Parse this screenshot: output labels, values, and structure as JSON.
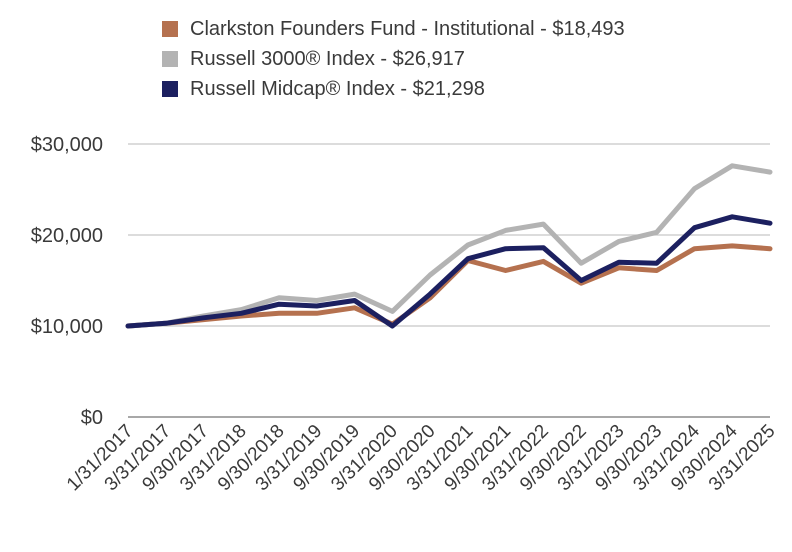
{
  "chart_data": {
    "type": "line",
    "title": "",
    "xlabel": "",
    "ylabel": "",
    "ylim": [
      0,
      30000
    ],
    "y_ticks": [
      0,
      10000,
      20000,
      30000
    ],
    "y_tick_labels": [
      "$0",
      "$10,000",
      "$20,000",
      "$30,000"
    ],
    "legend_position": "top-left",
    "grid": "horizontal",
    "categories": [
      "1/31/2017",
      "3/31/2017",
      "9/30/2017",
      "3/31/2018",
      "9/30/2018",
      "3/31/2019",
      "9/30/2019",
      "3/31/2020",
      "9/30/2020",
      "3/31/2021",
      "9/30/2021",
      "3/31/2022",
      "9/30/2022",
      "3/31/2023",
      "9/30/2023",
      "3/31/2024",
      "9/30/2024",
      "3/31/2025"
    ],
    "series": [
      {
        "name": "Clarkston Founders Fund - Institutional - $18,493",
        "color": "#b5714f",
        "values": [
          10000,
          10300,
          10700,
          11100,
          11400,
          11400,
          12000,
          10200,
          13100,
          17200,
          16100,
          17100,
          14700,
          16400,
          16100,
          18500,
          18800,
          18493
        ]
      },
      {
        "name": "Russell 3000® Index - $26,917",
        "color": "#b3b3b3",
        "values": [
          10000,
          10300,
          11100,
          11800,
          13100,
          12800,
          13500,
          11600,
          15600,
          18900,
          20500,
          21200,
          16900,
          19300,
          20300,
          25100,
          27600,
          26917
        ]
      },
      {
        "name": "Russell Midcap® Index - $21,298",
        "color": "#1c2060",
        "values": [
          10000,
          10300,
          10900,
          11400,
          12400,
          12200,
          12800,
          10000,
          13500,
          17400,
          18500,
          18600,
          15000,
          17000,
          16900,
          20800,
          22000,
          21298
        ]
      }
    ]
  }
}
